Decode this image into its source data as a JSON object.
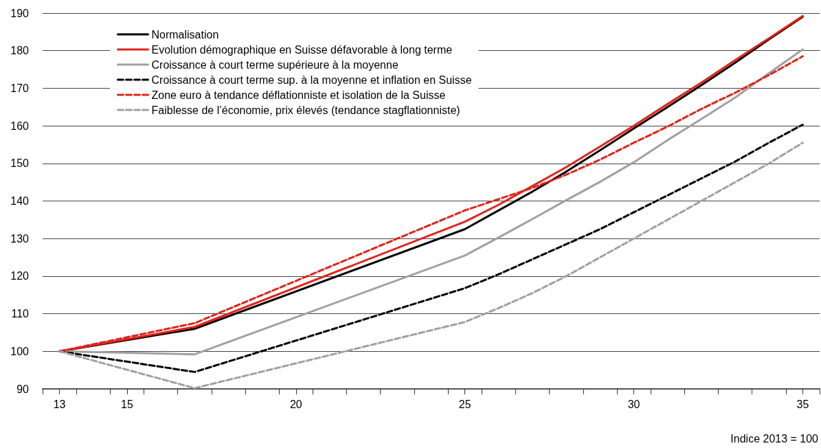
{
  "chart_data": {
    "type": "line",
    "x": [
      13,
      17,
      25,
      26,
      27,
      28,
      29,
      30,
      31,
      32,
      33,
      34,
      35
    ],
    "series": [
      {
        "name": "Normalisation",
        "color": "#000000",
        "line_style": "solid",
        "values": [
          100,
          106,
          132.5,
          137.5,
          142.5,
          147.8,
          153.5,
          159.3,
          165,
          170.8,
          176.8,
          183,
          189
        ]
      },
      {
        "name": "Evolution démographique en Suisse défavorable à long terme",
        "color": "#e2231a",
        "line_style": "solid",
        "values": [
          100,
          106.5,
          134.5,
          139,
          144,
          149,
          154.5,
          160,
          165.8,
          171.5,
          177.5,
          183.3,
          189.2
        ]
      },
      {
        "name": "Croissance à court terme supérieure à la moyenne",
        "color": "#a0a0a0",
        "line_style": "solid",
        "values": [
          100,
          99.2,
          125.5,
          130.3,
          135.2,
          140.2,
          145.1,
          150.3,
          156.2,
          161.8,
          167.5,
          174,
          180.3
        ]
      },
      {
        "name": "Croissance à court terme sup. à la moyenne et inflation en Suisse",
        "color": "#000000",
        "line_style": "dashed",
        "values": [
          100,
          94.5,
          116.8,
          120.5,
          124.5,
          128.5,
          132.5,
          137,
          141.5,
          146,
          150.5,
          155.5,
          160.3
        ]
      },
      {
        "name": "Zone euro à tendance déflationniste et isolation de la Suisse",
        "color": "#e2231a",
        "line_style": "dashed",
        "values": [
          100,
          107.5,
          137.5,
          140.5,
          143.5,
          147,
          151,
          155.5,
          159.8,
          164.5,
          168.8,
          173.5,
          178.5
        ]
      },
      {
        "name": "Faiblesse de l’économie, prix élevés (tendance stagflationniste)",
        "color": "#a0a0a0",
        "line_style": "dashed",
        "values": [
          100,
          90.2,
          107.8,
          111.5,
          115.5,
          120,
          125,
          130,
          135,
          140,
          145,
          150,
          155.5
        ]
      }
    ],
    "xlim": [
      12.5,
      35.5
    ],
    "xticks": [
      13,
      15,
      20,
      25,
      30,
      35,
      {
        "value": 12.5,
        "label": null
      },
      {
        "value": 13.5,
        "label": null
      },
      {
        "value": 14.5,
        "label": null
      },
      {
        "value": 15.5,
        "label": null
      },
      {
        "value": 16.5,
        "label": null
      },
      {
        "value": 17.5,
        "label": null
      },
      {
        "value": 18.5,
        "label": null
      },
      {
        "value": 19.5,
        "label": null
      },
      {
        "value": 20.5,
        "label": null
      },
      {
        "value": 21.5,
        "label": null
      },
      {
        "value": 22.5,
        "label": null
      },
      {
        "value": 23.5,
        "label": null
      },
      {
        "value": 24.5,
        "label": null
      },
      {
        "value": 25.5,
        "label": null
      },
      {
        "value": 26.5,
        "label": null
      },
      {
        "value": 27.5,
        "label": null
      },
      {
        "value": 28.5,
        "label": null
      },
      {
        "value": 29.5,
        "label": null
      },
      {
        "value": 30.5,
        "label": null
      },
      {
        "value": 31.5,
        "label": null
      },
      {
        "value": 32.5,
        "label": null
      },
      {
        "value": 33.5,
        "label": null
      },
      {
        "value": 34.5,
        "label": null
      },
      {
        "value": 35.5,
        "label": null
      }
    ],
    "ylim": [
      90,
      190
    ],
    "yticks": [
      90,
      100,
      110,
      120,
      130,
      140,
      150,
      160,
      170,
      180,
      190
    ],
    "grid": "y",
    "legend": "top left",
    "marker": "none",
    "annotations": [
      "Indice 2013 = 100"
    ]
  }
}
